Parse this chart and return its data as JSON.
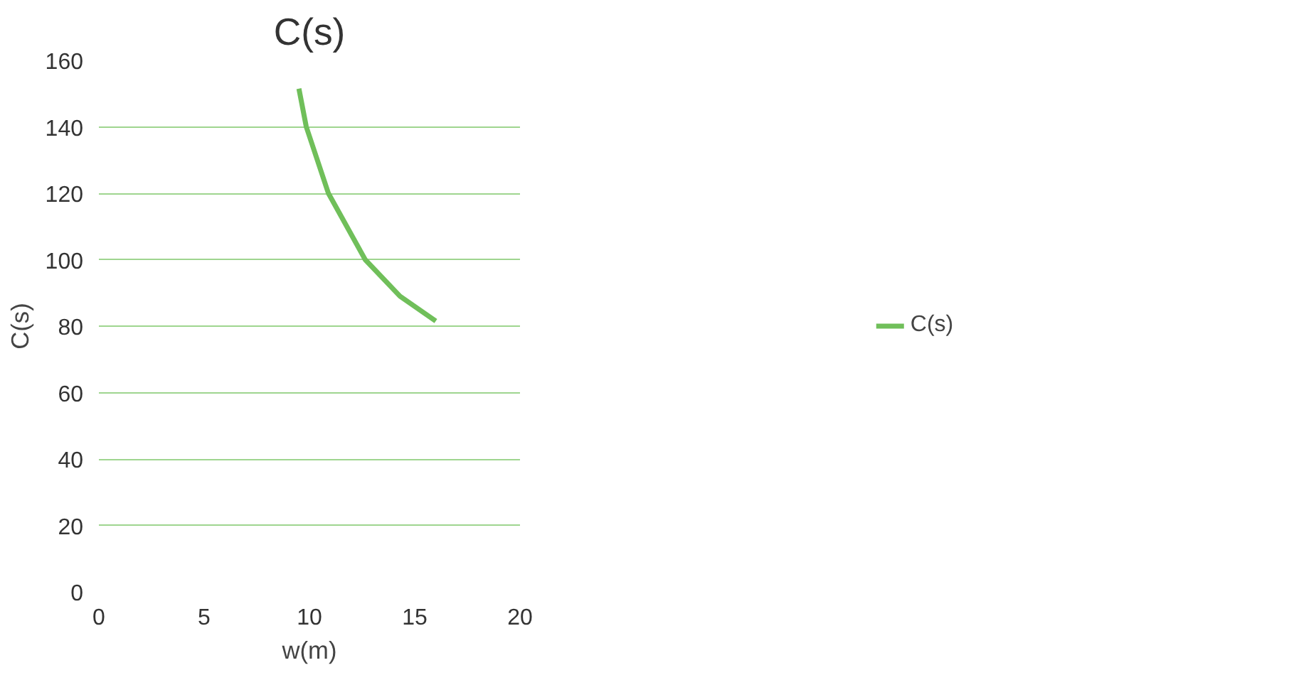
{
  "chart_data": {
    "type": "line",
    "title": "C(s)",
    "xlabel": "w(m)",
    "ylabel": "C(s)",
    "series": [
      {
        "name": "C(s)",
        "color": "#70bf5a",
        "x": [
          9.5,
          9.85,
          10.9,
          12.65,
          14.3,
          16.0
        ],
        "values": [
          151.5,
          140,
          120,
          100,
          89,
          81.5
        ]
      }
    ],
    "xlim": [
      0,
      20
    ],
    "xticks": [
      0,
      5,
      10,
      15,
      20
    ],
    "ylim": [
      0,
      160
    ],
    "yticks": [
      0,
      20,
      40,
      60,
      80,
      100,
      120,
      140,
      160
    ],
    "grid": "y",
    "legend": "right"
  }
}
